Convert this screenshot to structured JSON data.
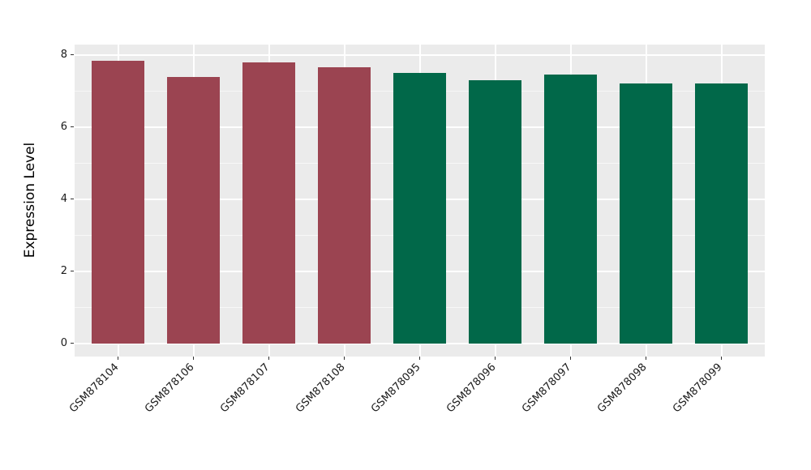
{
  "chart_data": {
    "type": "bar",
    "title": "",
    "xlabel": "",
    "ylabel": "Expression Level",
    "categories": [
      "GSM878104",
      "GSM878106",
      "GSM878107",
      "GSM878108",
      "GSM878095",
      "GSM878096",
      "GSM878097",
      "GSM878098",
      "GSM878099"
    ],
    "values": [
      7.85,
      7.4,
      7.8,
      7.65,
      7.5,
      7.3,
      7.45,
      7.2,
      7.2
    ],
    "bar_colors": [
      "#9B4451",
      "#9B4451",
      "#9B4451",
      "#9B4451",
      "#016849",
      "#016849",
      "#016849",
      "#016849",
      "#016849"
    ],
    "group_colors": {
      "first_group": "#9B4451",
      "second_group": "#016849"
    },
    "ylim": [
      -0.37,
      8.29
    ],
    "yticks": [
      0,
      2,
      4,
      6,
      8
    ],
    "ytick_labels": [
      "0",
      "2",
      "4",
      "6",
      "8"
    ],
    "yticks_minor": [
      1,
      3,
      5,
      7
    ],
    "grid": "on",
    "legend": "none",
    "panel_bg": "#EBEBEB",
    "grid_color": "#FFFFFF",
    "x_tick_rotation": 45
  }
}
